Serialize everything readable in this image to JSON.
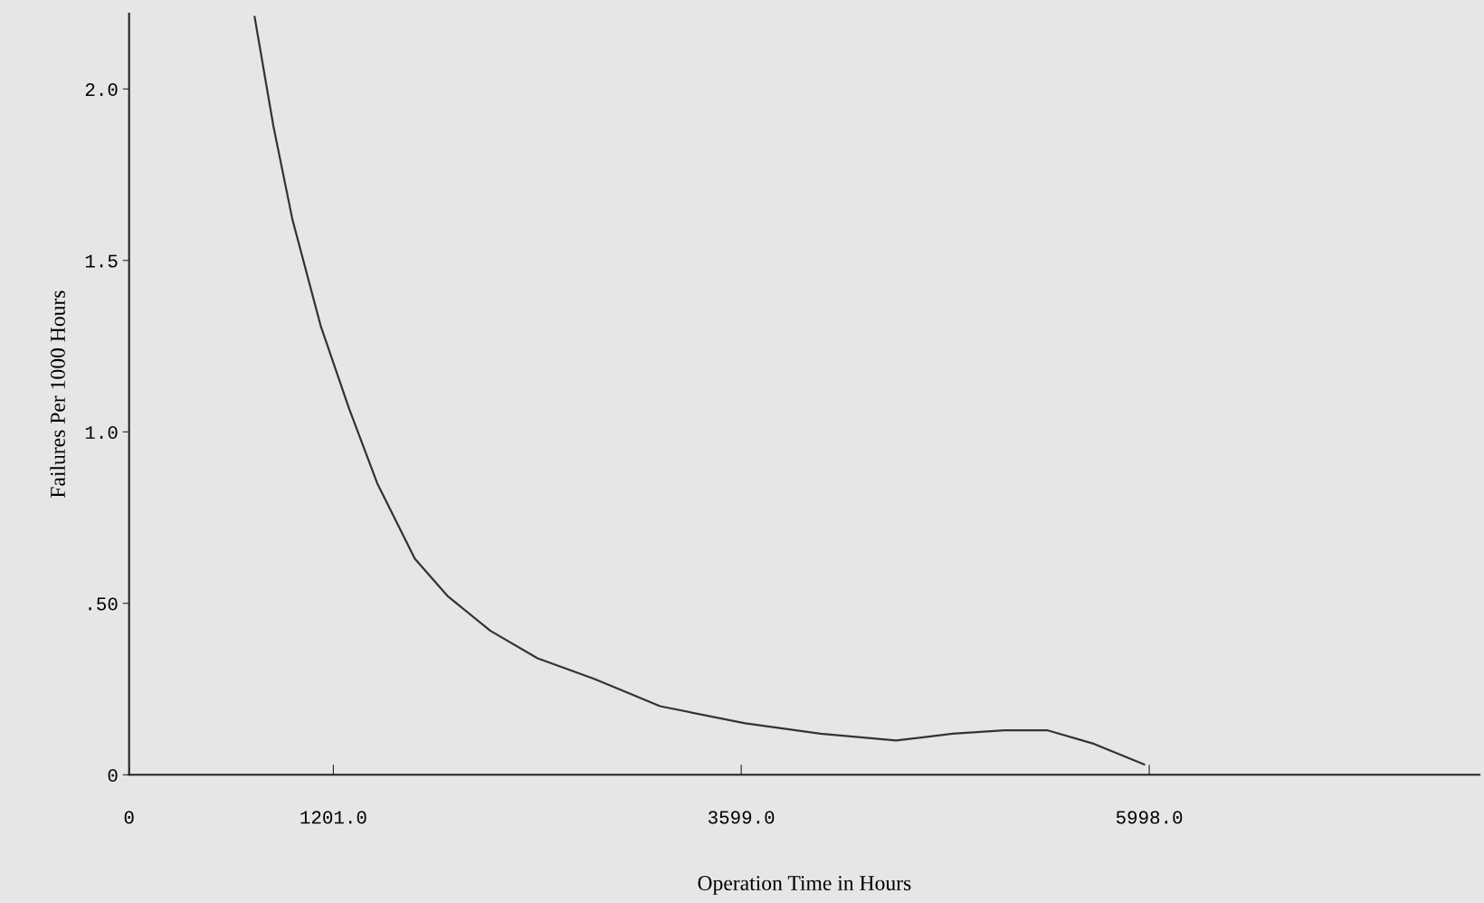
{
  "chart_data": {
    "type": "line",
    "xlabel": "Operation Time in Hours",
    "ylabel": "Failures Per 1000 Hours",
    "x": [
      738,
      849,
      960,
      1126,
      1292,
      1459,
      1680,
      1875,
      2124,
      2401,
      2734,
      3122,
      3622,
      4065,
      4509,
      4842,
      5147,
      5397,
      5674,
      5968
    ],
    "series": [
      {
        "color": "#333333",
        "values": [
          2.21,
          1.89,
          1.62,
          1.31,
          1.07,
          0.85,
          0.63,
          0.52,
          0.42,
          0.34,
          0.28,
          0.2,
          0.15,
          0.12,
          0.1,
          0.12,
          0.13,
          0.13,
          0.09,
          0.03
        ]
      }
    ],
    "xlim": [
      0,
      7940
    ],
    "ylim": [
      0,
      2.22
    ],
    "xticks": [
      {
        "value": 0,
        "label": "0"
      },
      {
        "value": 1201,
        "label": "1201.0"
      },
      {
        "value": 3599,
        "label": "3599.0"
      },
      {
        "value": 5998,
        "label": "5998.0"
      }
    ],
    "yticks": [
      0,
      {
        "value": 0.5,
        "label": ".50"
      },
      {
        "value": 1,
        "label": "1.0"
      },
      {
        "value": 1.5,
        "label": "1.5"
      },
      {
        "value": 2,
        "label": "2.0"
      }
    ],
    "grid": false,
    "legend": false,
    "marker": "none",
    "line_style": "solid"
  }
}
